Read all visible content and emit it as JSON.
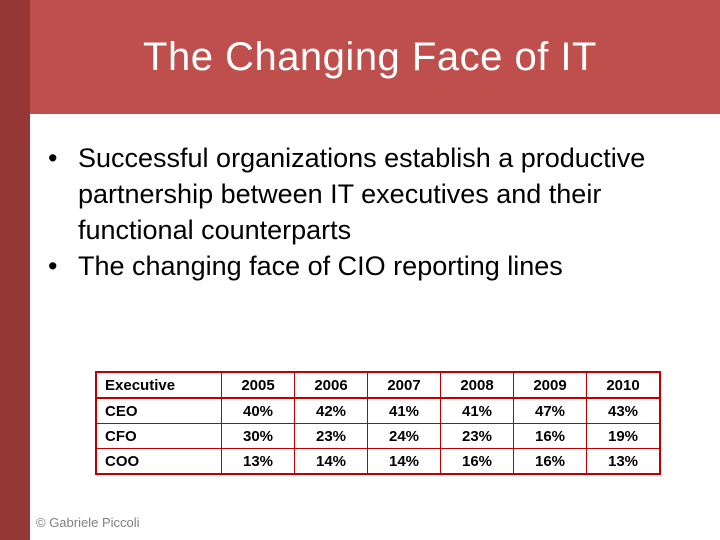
{
  "slide": {
    "title": "The Changing Face of IT",
    "bullets": [
      "Successful organizations establish a productive partnership between IT executives and their functional counterparts",
      "The changing face of CIO reporting lines"
    ],
    "footer": "© Gabriele Piccoli"
  },
  "table": {
    "headers": [
      "Executive",
      "2005",
      "2006",
      "2007",
      "2008",
      "2009",
      "2010"
    ],
    "rows": [
      [
        "CEO",
        "40%",
        "42%",
        "41%",
        "41%",
        "47%",
        "43%"
      ],
      [
        "CFO",
        "30%",
        "23%",
        "24%",
        "23%",
        "16%",
        "19%"
      ],
      [
        "COO",
        "13%",
        "14%",
        "14%",
        "16%",
        "16%",
        "13%"
      ]
    ]
  },
  "colors": {
    "title_band": "#bf4f4c",
    "left_bar": "#953734",
    "table_border": "#c00000",
    "title_text": "#ffffff",
    "body_text": "#000000",
    "footer_text": "#808080"
  }
}
